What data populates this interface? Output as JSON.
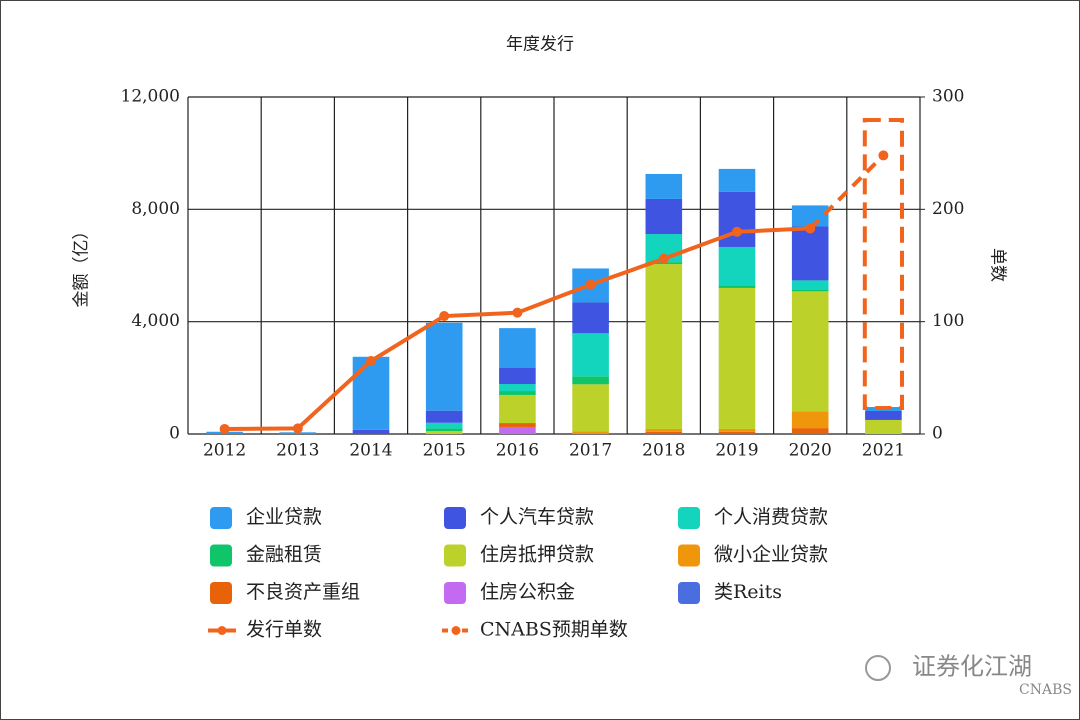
{
  "chart_data": {
    "type": "bar",
    "title": "年度发行",
    "y_label": "金额（亿）",
    "y2_label": "单数",
    "categories": [
      "2012",
      "2013",
      "2014",
      "2015",
      "2016",
      "2017",
      "2018",
      "2019",
      "2020",
      "2021"
    ],
    "series": [
      {
        "name": "企业贷款",
        "color": "#2e9bf0",
        "values": [
          80,
          60,
          2600,
          3130,
          1420,
          1210,
          890,
          820,
          750,
          140
        ]
      },
      {
        "name": "个人汽车贷款",
        "color": "#3f54e0",
        "values": [
          0,
          0,
          150,
          430,
          570,
          1100,
          1250,
          1960,
          1920,
          320
        ]
      },
      {
        "name": "个人消费贷款",
        "color": "#13d4bd",
        "values": [
          0,
          0,
          0,
          200,
          250,
          1530,
          1000,
          1390,
          320,
          0
        ]
      },
      {
        "name": "金融租赁",
        "color": "#10c46a",
        "values": [
          0,
          0,
          0,
          100,
          140,
          285,
          70,
          70,
          70,
          0
        ]
      },
      {
        "name": "住房抵押贷款",
        "color": "#bcd12a",
        "values": [
          0,
          0,
          0,
          100,
          1000,
          1670,
          5870,
          5020,
          4270,
          500
        ]
      },
      {
        "name": "微小企业贷款",
        "color": "#f0960a",
        "values": [
          0,
          0,
          0,
          0,
          0,
          100,
          100,
          100,
          600,
          0
        ]
      },
      {
        "name": "不良资产重组",
        "color": "#e8620a",
        "values": [
          0,
          0,
          0,
          0,
          140,
          0,
          80,
          80,
          210,
          0
        ]
      },
      {
        "name": "住房公积金",
        "color": "#c46af0",
        "values": [
          0,
          0,
          0,
          0,
          250,
          0,
          0,
          0,
          0,
          0
        ]
      },
      {
        "name": "类Reits",
        "color": "#4a6ee0",
        "values": [
          0,
          0,
          0,
          0,
          0,
          0,
          0,
          0,
          0,
          0
        ]
      },
      {
        "name": "发行单数",
        "color": "#f0641e",
        "type": "line",
        "axis": "y2",
        "style": "solid",
        "values": [
          4.5,
          5,
          65,
          105,
          108,
          133,
          156,
          180,
          183,
          null
        ]
      },
      {
        "name": "CNABS预期单数",
        "color": "#f0641e",
        "type": "line",
        "axis": "y2",
        "style": "dashed",
        "values": [
          null,
          null,
          null,
          null,
          null,
          null,
          null,
          null,
          183,
          248
        ]
      }
    ],
    "ylim": [
      0,
      12000
    ],
    "yticks": [
      0,
      {
        "value": 4000,
        "label": "4,000"
      },
      {
        "value": 8000,
        "label": "8,000"
      },
      {
        "value": 12000,
        "label": "12,000"
      }
    ],
    "y2lim": [
      0,
      300
    ],
    "y2ticks": [
      0,
      100,
      200,
      300
    ],
    "grid": true,
    "legend": "bottom"
  },
  "watermark": {
    "text": "证券化江湖",
    "sub": "CNABS"
  }
}
